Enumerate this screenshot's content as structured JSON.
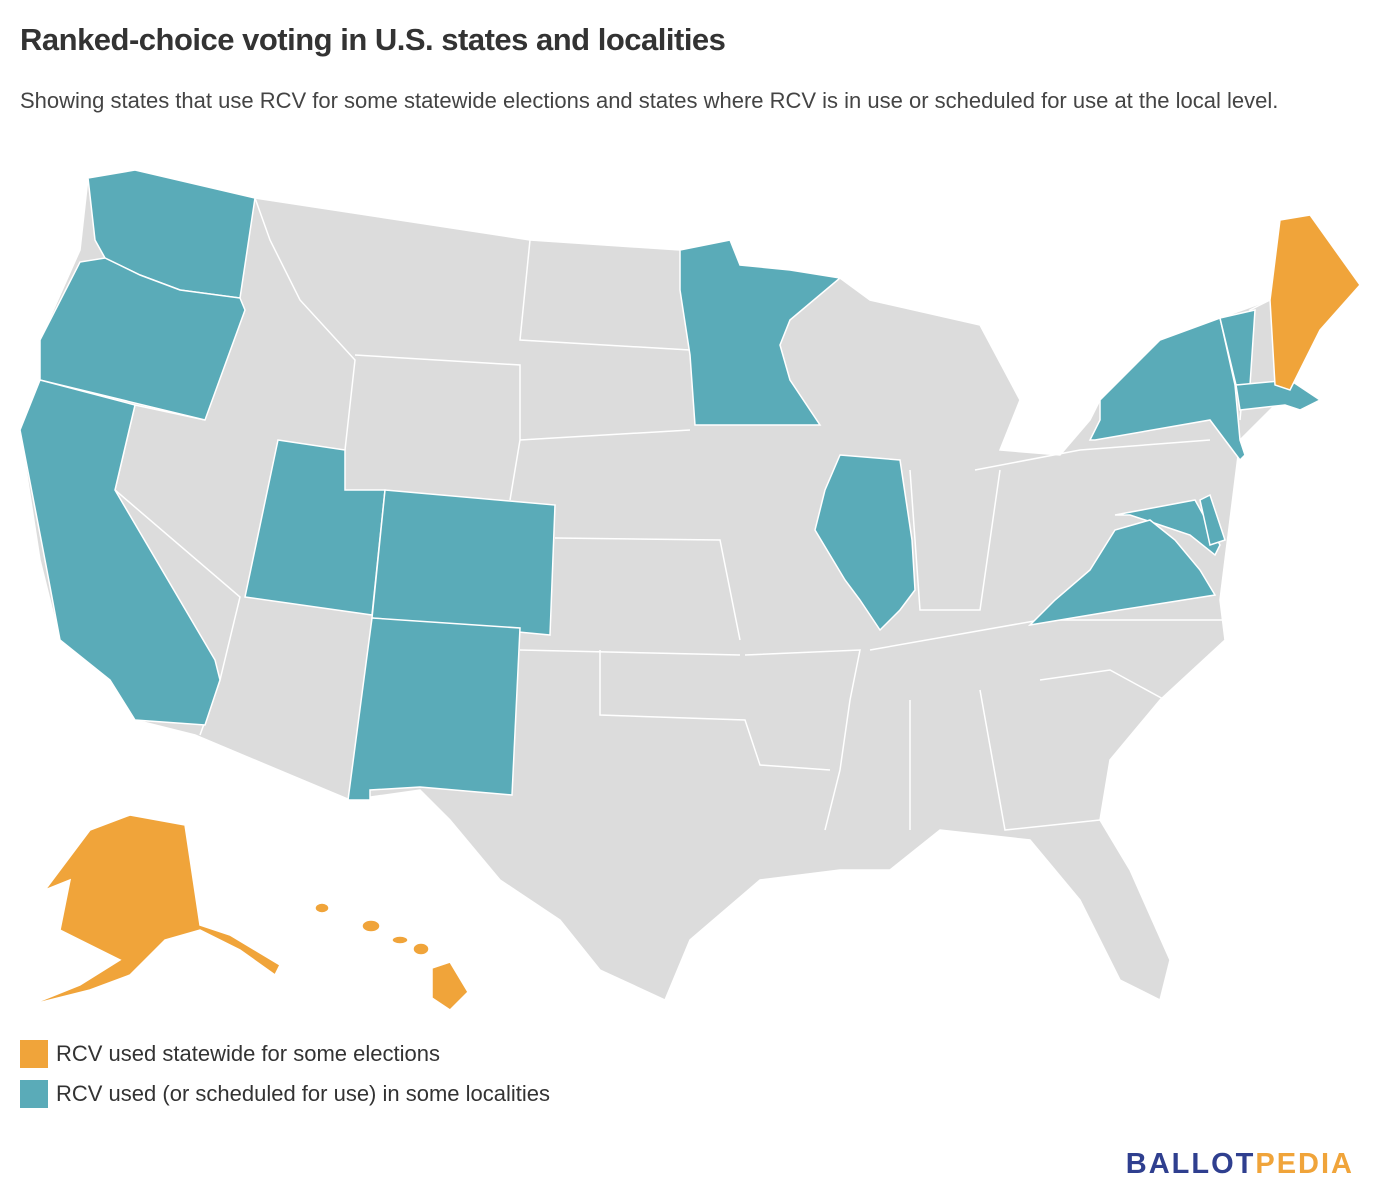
{
  "title": "Ranked-choice voting in U.S. states and localities",
  "subtitle": "Showing states that use RCV for some statewide elections and states where RCV is in use or scheduled for use at the local level.",
  "legend": [
    {
      "label": "RCV used statewide for some elections",
      "color": "#f0a43a"
    },
    {
      "label": "RCV used (or scheduled for use) in some localities",
      "color": "#5aabb8"
    }
  ],
  "logo": {
    "first": "BALLOT",
    "second": "PEDIA"
  }
}
